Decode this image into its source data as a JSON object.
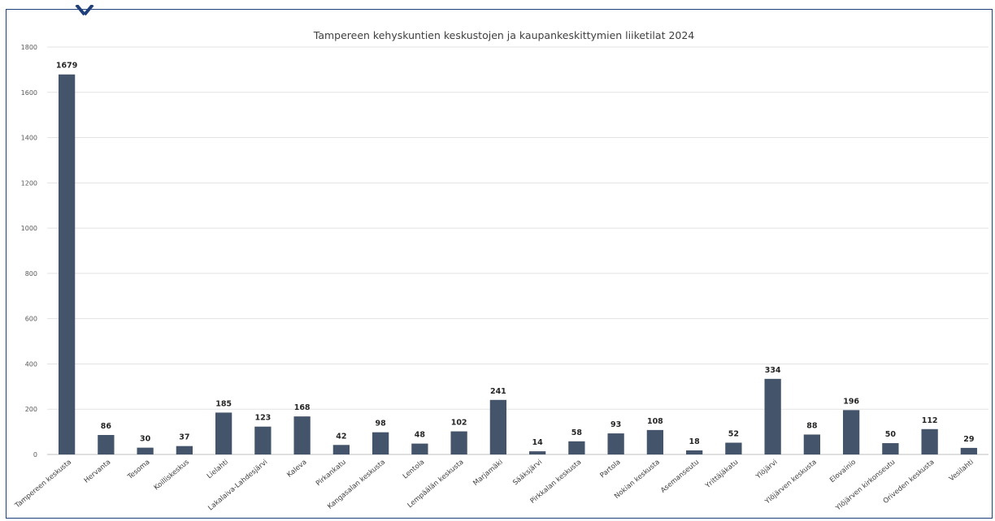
{
  "chart_data": {
    "type": "bar",
    "title": "Tampereen kehyskuntien keskustojen ja kaupankeskittymien liiketilat 2024",
    "xlabel": "",
    "ylabel": "",
    "ylim": [
      0,
      1800
    ],
    "yticks": [
      0,
      200,
      400,
      600,
      800,
      1000,
      1200,
      1400,
      1600,
      1800
    ],
    "grid": true,
    "legend": "none",
    "bar_color": "#44546a",
    "categories": [
      "Tampereen keskusta",
      "Hervanta",
      "Tesoma",
      "Koilliskeskus",
      "Lielahti",
      "Lakalaiva-Lahdesjärvi",
      "Kaleva",
      "Pirkankatu",
      "Kangasalan keskusta",
      "Lentola",
      "Lempäälän keskusta",
      "Marjamäki",
      "Sääksjärvi",
      "Pirkkalan keskusta",
      "Partola",
      "Nokian keskusta",
      "Asemanseutu",
      "Yrittäjäkatu",
      "Ylöjärvi",
      "Ylöjärven keskusta",
      "Elovainio",
      "Ylöjärven kirkonseutu",
      "Oriveden keskusta",
      "Vesilahti"
    ],
    "values": [
      1679,
      86,
      30,
      37,
      185,
      123,
      168,
      42,
      98,
      48,
      102,
      241,
      14,
      58,
      93,
      108,
      18,
      52,
      334,
      88,
      196,
      50,
      112,
      29
    ]
  }
}
